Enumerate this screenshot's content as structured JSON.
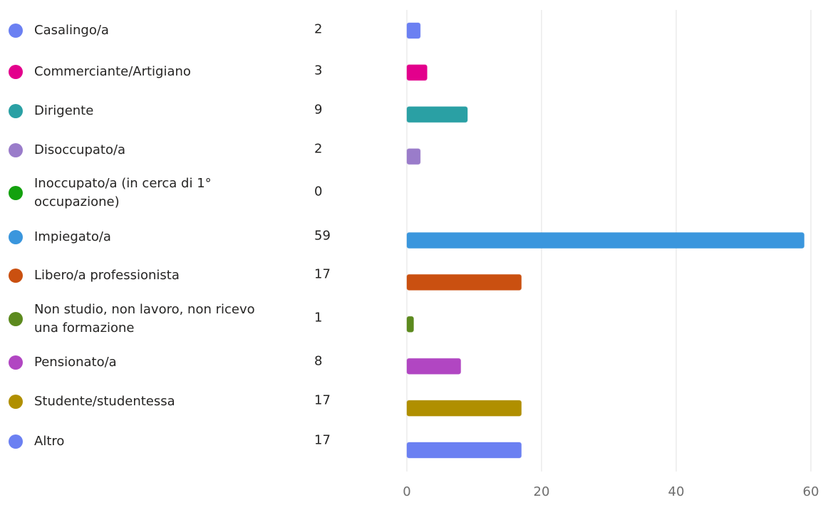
{
  "chart_data": {
    "type": "bar",
    "orientation": "horizontal",
    "categories": [
      "Casalingo/a",
      "Commerciante/Artigiano",
      "Dirigente",
      "Disoccupato/a",
      "Inoccupato/a (in cerca di 1° occupazione)",
      "Impiegato/a",
      "Libero/a professionista",
      "Non studio, non lavoro, non ricevo una formazione",
      "Pensionato/a",
      "Studente/studentessa",
      "Altro"
    ],
    "values": [
      2,
      3,
      9,
      2,
      0,
      59,
      17,
      1,
      8,
      17,
      17
    ],
    "colors": [
      "#6b80f2",
      "#e3008c",
      "#2aa0a4",
      "#9a7cca",
      "#13a10e",
      "#3a96dd",
      "#ca5010",
      "#5c8a1e",
      "#b146c2",
      "#b08f00",
      "#6b80f2"
    ],
    "xlim": [
      0,
      60
    ],
    "xticks": [
      0,
      20,
      40,
      60
    ],
    "grid": true
  }
}
